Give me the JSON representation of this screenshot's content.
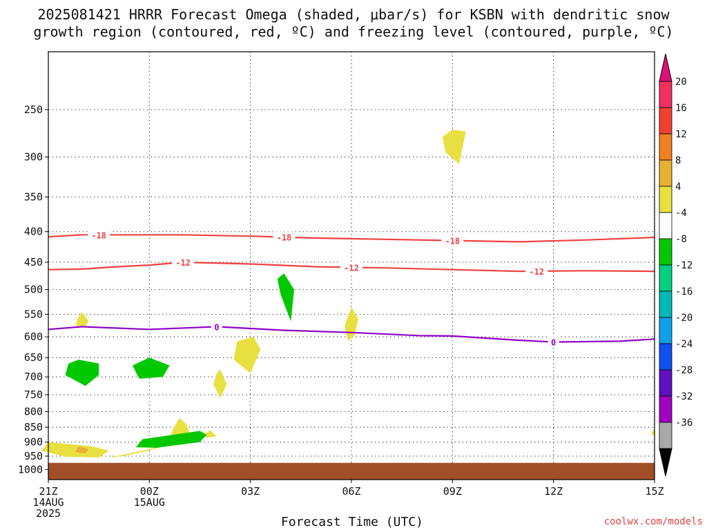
{
  "title_line1": "2025081421 HRRR Forecast Omega (shaded, μbar/s) for KSBN with dendritic snow",
  "title_line2": "growth region (contoured, red, ºC) and freezing level (contoured, purple, ºC)",
  "xlabel": "Forecast Time (UTC)",
  "credit": "coolwx.com/models",
  "chart_data": {
    "type": "heatmap",
    "title": "2025081421 HRRR Forecast Omega (shaded, μbar/s) for KSBN with dendritic snow growth region (contoured, red, ºC) and freezing level (contoured, purple, ºC)",
    "xlabel": "Forecast Time (UTC)",
    "ylabel": "",
    "x_unit": "forecast hours from 21Z 14AUG 2025",
    "xlim": [
      0,
      18
    ],
    "x_ticks": [
      {
        "hour": 0,
        "lines": [
          "21Z",
          "14AUG",
          "2025"
        ]
      },
      {
        "hour": 3,
        "lines": [
          "00Z",
          "15AUG"
        ]
      },
      {
        "hour": 6,
        "lines": [
          "03Z"
        ]
      },
      {
        "hour": 9,
        "lines": [
          "06Z"
        ]
      },
      {
        "hour": 12,
        "lines": [
          "09Z"
        ]
      },
      {
        "hour": 15,
        "lines": [
          "12Z"
        ]
      },
      {
        "hour": 18,
        "lines": [
          "15Z"
        ]
      }
    ],
    "y_ticks": [
      250,
      300,
      350,
      400,
      450,
      500,
      550,
      600,
      650,
      700,
      750,
      800,
      850,
      900,
      950,
      1000
    ],
    "ylim_hpa": [
      1040,
      200
    ],
    "grid": true,
    "colorbar": {
      "labels": [
        "20",
        "16",
        "12",
        "8",
        "4",
        "-4",
        "-8",
        "-12",
        "-16",
        "-20",
        "-24",
        "-28",
        "-32",
        "-36"
      ],
      "colors": [
        "#f03060",
        "#f04030",
        "#f08020",
        "#e8b030",
        "#e8e040",
        "#ffffff",
        "#00c800",
        "#00d080",
        "#00b8b8",
        "#10a0e8",
        "#1050f0",
        "#6010c0",
        "#a000c0",
        "#a8a8a8"
      ],
      "top_arrow_color": "#e0107a",
      "bottom_arrow_color": "#000000"
    },
    "contours": [
      {
        "name": "-18",
        "color": "#f04040",
        "points": [
          [
            0,
            408
          ],
          [
            1,
            405
          ],
          [
            2,
            405
          ],
          [
            3,
            405
          ],
          [
            4,
            405
          ],
          [
            6,
            407
          ],
          [
            8,
            410
          ],
          [
            10,
            412
          ],
          [
            12,
            414
          ],
          [
            14,
            416
          ],
          [
            16,
            413
          ],
          [
            18,
            409
          ]
        ],
        "labels": [
          1.5,
          7,
          12
        ]
      },
      {
        "name": "-12",
        "color": "#f04040",
        "points": [
          [
            0,
            463
          ],
          [
            1,
            462
          ],
          [
            2,
            458
          ],
          [
            3,
            455
          ],
          [
            4,
            450
          ],
          [
            6,
            453
          ],
          [
            8,
            458
          ],
          [
            10,
            460
          ],
          [
            12,
            463
          ],
          [
            14,
            466
          ],
          [
            16,
            465
          ],
          [
            18,
            466
          ]
        ],
        "labels": [
          4,
          9,
          14.5
        ]
      },
      {
        "name": "0",
        "color": "#9000c8",
        "points": [
          [
            0,
            583
          ],
          [
            1,
            577
          ],
          [
            3,
            583
          ],
          [
            5,
            577
          ],
          [
            7,
            585
          ],
          [
            9,
            590
          ],
          [
            11,
            597
          ],
          [
            12,
            598
          ],
          [
            14,
            608
          ],
          [
            15,
            612
          ],
          [
            17,
            610
          ],
          [
            18,
            605
          ]
        ],
        "labels": [
          5,
          15
        ]
      }
    ],
    "regions": [
      {
        "value": 6,
        "color": "#e8e040",
        "points": [
          [
            12,
            270
          ],
          [
            12.4,
            272
          ],
          [
            12.2,
            308
          ],
          [
            11.8,
            295
          ],
          [
            11.7,
            278
          ]
        ]
      },
      {
        "value": 6,
        "color": "#e8e040",
        "points": [
          [
            1,
            545
          ],
          [
            1.2,
            565
          ],
          [
            1.1,
            575
          ],
          [
            0.8,
            575
          ],
          [
            0.9,
            555
          ]
        ]
      },
      {
        "value": 6,
        "color": "#e8e040",
        "points": [
          [
            9,
            535
          ],
          [
            9.2,
            560
          ],
          [
            9.1,
            595
          ],
          [
            8.9,
            610
          ],
          [
            8.8,
            575
          ]
        ]
      },
      {
        "value": 6,
        "color": "#e8e040",
        "points": [
          [
            6.1,
            600
          ],
          [
            6.3,
            630
          ],
          [
            6,
            690
          ],
          [
            5.5,
            655
          ],
          [
            5.6,
            610
          ]
        ]
      },
      {
        "value": 6,
        "color": "#e8e040",
        "points": [
          [
            5.1,
            680
          ],
          [
            5.3,
            720
          ],
          [
            5.1,
            760
          ],
          [
            4.9,
            720
          ],
          [
            5,
            690
          ]
        ]
      },
      {
        "value": 6,
        "color": "#e8e040",
        "points": [
          [
            3.9,
            820
          ],
          [
            4.1,
            840
          ],
          [
            4.2,
            870
          ],
          [
            3.5,
            890
          ],
          [
            3.2,
            920
          ],
          [
            2.6,
            935
          ],
          [
            1.8,
            955
          ],
          [
            1.6,
            958
          ],
          [
            2.2,
            950
          ],
          [
            2.8,
            935
          ],
          [
            3.3,
            920
          ],
          [
            3.6,
            890
          ],
          [
            3.7,
            855
          ]
        ]
      },
      {
        "value": 6,
        "color": "#e8e040",
        "points": [
          [
            4.8,
            860
          ],
          [
            5,
            880
          ],
          [
            4.7,
            885
          ],
          [
            4.6,
            875
          ]
        ]
      },
      {
        "value": 6,
        "color": "#e8e040",
        "points": [
          [
            0,
            900
          ],
          [
            1.3,
            915
          ],
          [
            1.8,
            930
          ],
          [
            1.5,
            955
          ],
          [
            0.5,
            952
          ],
          [
            -0.2,
            930
          ]
        ]
      },
      {
        "value": 10,
        "color": "#e8b030",
        "points": [
          [
            0.9,
            915
          ],
          [
            1.2,
            925
          ],
          [
            1.1,
            940
          ],
          [
            0.8,
            935
          ]
        ]
      },
      {
        "value": 6,
        "color": "#e8e040",
        "points": [
          [
            18,
            855
          ],
          [
            18,
            880
          ],
          [
            17.9,
            870
          ]
        ]
      },
      {
        "value": -6,
        "color": "#00c800",
        "points": [
          [
            0.9,
            655
          ],
          [
            1.5,
            665
          ],
          [
            1.5,
            695
          ],
          [
            1.1,
            725
          ],
          [
            0.5,
            695
          ],
          [
            0.6,
            665
          ]
        ]
      },
      {
        "value": -6,
        "color": "#00c800",
        "points": [
          [
            3,
            650
          ],
          [
            3.6,
            670
          ],
          [
            3.4,
            700
          ],
          [
            2.7,
            705
          ],
          [
            2.5,
            670
          ]
        ]
      },
      {
        "value": -6,
        "color": "#00c800",
        "points": [
          [
            7,
            470
          ],
          [
            7.3,
            500
          ],
          [
            7.2,
            565
          ],
          [
            6.9,
            510
          ],
          [
            6.8,
            480
          ]
        ]
      },
      {
        "value": -6,
        "color": "#00c800",
        "points": [
          [
            4.5,
            862
          ],
          [
            4.7,
            875
          ],
          [
            4.5,
            900
          ],
          [
            3.2,
            920
          ],
          [
            2.6,
            918
          ],
          [
            2.8,
            890
          ]
        ]
      }
    ],
    "ground": {
      "color": "#a04f28",
      "top_hpa": 975
    }
  }
}
